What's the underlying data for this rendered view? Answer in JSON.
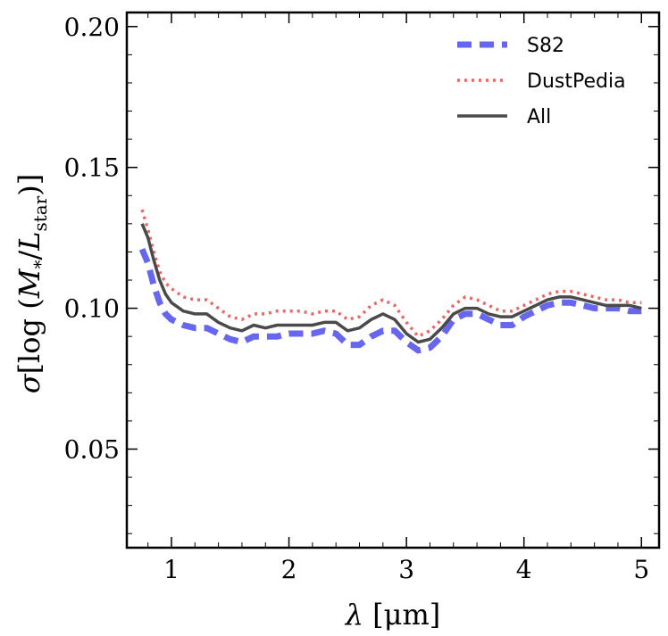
{
  "chart_data": {
    "type": "line",
    "xlabel": "λ [μm]",
    "ylabel": "σ[log (M*/Lstar)]",
    "ylabel_parts": {
      "sigma": "σ",
      "open": "[log (",
      "M": "M",
      "Msub": "*",
      "slash": "/",
      "L": "L",
      "Lsub": "star",
      "close": ")]"
    },
    "xlim": [
      0.62,
      5.15
    ],
    "ylim": [
      0.015,
      0.205
    ],
    "xticks": [
      1,
      2,
      3,
      4,
      5
    ],
    "xtick_labels": [
      "1",
      "2",
      "3",
      "4",
      "5"
    ],
    "yticks": [
      0.05,
      0.1,
      0.15,
      0.2
    ],
    "ytick_labels": [
      "0.05",
      "0.10",
      "0.15",
      "0.20"
    ],
    "grid": false,
    "legend_position": "top-right",
    "series": [
      {
        "name": "S82",
        "color": "#6666ee",
        "style": "dashed",
        "x": [
          0.75,
          0.8,
          0.85,
          0.9,
          0.95,
          1.0,
          1.1,
          1.2,
          1.3,
          1.4,
          1.5,
          1.6,
          1.7,
          1.8,
          1.9,
          2.0,
          2.1,
          2.2,
          2.3,
          2.4,
          2.5,
          2.6,
          2.7,
          2.8,
          2.9,
          3.0,
          3.1,
          3.2,
          3.3,
          3.4,
          3.5,
          3.6,
          3.7,
          3.8,
          3.9,
          4.0,
          4.1,
          4.2,
          4.3,
          4.4,
          4.5,
          4.6,
          4.7,
          4.8,
          4.9,
          5.0
        ],
        "y": [
          0.121,
          0.116,
          0.108,
          0.102,
          0.098,
          0.096,
          0.094,
          0.093,
          0.093,
          0.091,
          0.089,
          0.088,
          0.09,
          0.09,
          0.09,
          0.091,
          0.091,
          0.091,
          0.092,
          0.091,
          0.087,
          0.087,
          0.09,
          0.092,
          0.092,
          0.088,
          0.085,
          0.086,
          0.09,
          0.096,
          0.098,
          0.098,
          0.096,
          0.094,
          0.094,
          0.097,
          0.099,
          0.101,
          0.102,
          0.102,
          0.101,
          0.1,
          0.1,
          0.1,
          0.099,
          0.099
        ]
      },
      {
        "name": "DustPedia",
        "color": "#ee6666",
        "style": "dotted",
        "x": [
          0.75,
          0.8,
          0.85,
          0.9,
          0.95,
          1.0,
          1.1,
          1.2,
          1.3,
          1.4,
          1.5,
          1.6,
          1.7,
          1.8,
          1.9,
          2.0,
          2.1,
          2.2,
          2.3,
          2.4,
          2.5,
          2.6,
          2.7,
          2.8,
          2.9,
          3.0,
          3.1,
          3.2,
          3.3,
          3.4,
          3.5,
          3.6,
          3.7,
          3.8,
          3.9,
          4.0,
          4.1,
          4.2,
          4.3,
          4.4,
          4.5,
          4.6,
          4.7,
          4.8,
          4.9,
          5.0
        ],
        "y": [
          0.135,
          0.128,
          0.12,
          0.113,
          0.109,
          0.107,
          0.104,
          0.103,
          0.103,
          0.1,
          0.097,
          0.096,
          0.098,
          0.098,
          0.099,
          0.099,
          0.099,
          0.098,
          0.099,
          0.099,
          0.096,
          0.097,
          0.101,
          0.103,
          0.101,
          0.095,
          0.09,
          0.092,
          0.096,
          0.101,
          0.104,
          0.103,
          0.101,
          0.099,
          0.099,
          0.101,
          0.103,
          0.105,
          0.106,
          0.106,
          0.105,
          0.104,
          0.103,
          0.103,
          0.102,
          0.102
        ]
      },
      {
        "name": "All",
        "color": "#4a4a4a",
        "style": "solid",
        "x": [
          0.75,
          0.8,
          0.85,
          0.9,
          0.95,
          1.0,
          1.1,
          1.2,
          1.3,
          1.4,
          1.5,
          1.6,
          1.7,
          1.8,
          1.9,
          2.0,
          2.1,
          2.2,
          2.3,
          2.4,
          2.5,
          2.6,
          2.7,
          2.8,
          2.9,
          3.0,
          3.1,
          3.2,
          3.3,
          3.4,
          3.5,
          3.6,
          3.7,
          3.8,
          3.9,
          4.0,
          4.1,
          4.2,
          4.3,
          4.4,
          4.5,
          4.6,
          4.7,
          4.8,
          4.9,
          5.0
        ],
        "y": [
          0.13,
          0.125,
          0.117,
          0.11,
          0.105,
          0.102,
          0.099,
          0.098,
          0.098,
          0.095,
          0.093,
          0.092,
          0.094,
          0.093,
          0.094,
          0.094,
          0.094,
          0.094,
          0.095,
          0.095,
          0.092,
          0.093,
          0.096,
          0.098,
          0.096,
          0.091,
          0.088,
          0.089,
          0.093,
          0.098,
          0.1,
          0.1,
          0.098,
          0.097,
          0.097,
          0.099,
          0.101,
          0.103,
          0.104,
          0.104,
          0.103,
          0.102,
          0.101,
          0.101,
          0.101,
          0.1
        ]
      }
    ]
  }
}
